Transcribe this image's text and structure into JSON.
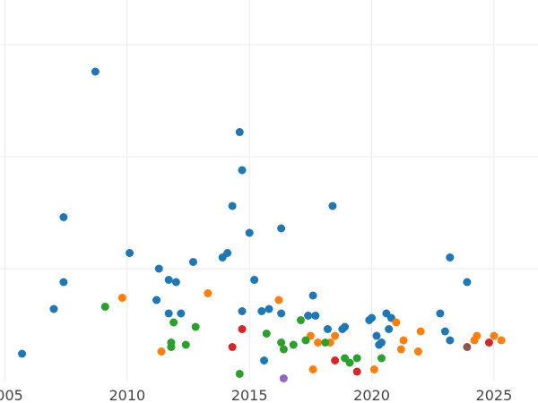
{
  "chart_data": {
    "type": "scatter",
    "title": "",
    "xlabel": "",
    "ylabel": "",
    "xlim": [
      2004.8,
      2026.8
    ],
    "ylim": [
      0,
      17
    ],
    "x_ticks": [
      2005,
      2010,
      2015,
      2020,
      2025
    ],
    "x_tick_labels": [
      "2005",
      "2010",
      "2015",
      "2020",
      "2025"
    ],
    "y_gridlines": [
      5,
      10,
      15
    ],
    "grid": true,
    "legend": "none",
    "series": [
      {
        "color": "#1f77b4",
        "points": [
          [
            2005.7,
            1.2
          ],
          [
            2007.0,
            3.2
          ],
          [
            2007.4,
            4.4
          ],
          [
            2007.4,
            7.3
          ],
          [
            2008.7,
            13.8
          ],
          [
            2010.1,
            5.7
          ],
          [
            2011.2,
            3.6
          ],
          [
            2011.3,
            5.0
          ],
          [
            2011.7,
            4.5
          ],
          [
            2011.7,
            3.0
          ],
          [
            2012.0,
            4.4
          ],
          [
            2012.2,
            3.0
          ],
          [
            2012.7,
            5.3
          ],
          [
            2013.9,
            5.5
          ],
          [
            2014.1,
            5.7
          ],
          [
            2014.3,
            7.8
          ],
          [
            2014.6,
            11.1
          ],
          [
            2014.7,
            3.1
          ],
          [
            2014.7,
            9.4
          ],
          [
            2015.0,
            6.6
          ],
          [
            2015.2,
            4.5
          ],
          [
            2015.5,
            3.1
          ],
          [
            2015.6,
            0.9
          ],
          [
            2015.8,
            3.2
          ],
          [
            2016.3,
            3.0
          ],
          [
            2016.3,
            6.8
          ],
          [
            2017.4,
            2.9
          ],
          [
            2017.6,
            3.8
          ],
          [
            2017.7,
            2.9
          ],
          [
            2018.2,
            2.3
          ],
          [
            2018.4,
            7.8
          ],
          [
            2018.8,
            2.3
          ],
          [
            2018.9,
            2.4
          ],
          [
            2019.9,
            2.7
          ],
          [
            2020.0,
            2.8
          ],
          [
            2020.2,
            2.0
          ],
          [
            2020.3,
            1.6
          ],
          [
            2020.4,
            1.7
          ],
          [
            2020.6,
            3.0
          ],
          [
            2020.7,
            2.3
          ],
          [
            2020.8,
            2.8
          ],
          [
            2022.8,
            3.0
          ],
          [
            2023.0,
            2.2
          ],
          [
            2023.2,
            1.8
          ],
          [
            2023.2,
            5.5
          ],
          [
            2023.9,
            4.4
          ]
        ]
      },
      {
        "color": "#ff7f0e",
        "points": [
          [
            2009.8,
            3.7
          ],
          [
            2011.4,
            1.3
          ],
          [
            2013.3,
            3.9
          ],
          [
            2016.2,
            3.6
          ],
          [
            2017.5,
            2.0
          ],
          [
            2017.6,
            0.5
          ],
          [
            2017.8,
            1.7
          ],
          [
            2018.3,
            1.7
          ],
          [
            2018.5,
            2.0
          ],
          [
            2020.1,
            0.5
          ],
          [
            2021.0,
            2.6
          ],
          [
            2021.2,
            1.4
          ],
          [
            2021.3,
            1.8
          ],
          [
            2021.9,
            1.3
          ],
          [
            2022.0,
            2.2
          ],
          [
            2024.2,
            1.8
          ],
          [
            2024.3,
            2.0
          ],
          [
            2025.0,
            2.0
          ],
          [
            2025.3,
            1.8
          ]
        ]
      },
      {
        "color": "#2ca02c",
        "points": [
          [
            2009.1,
            3.3
          ],
          [
            2011.8,
            1.7
          ],
          [
            2011.8,
            1.5
          ],
          [
            2011.9,
            2.6
          ],
          [
            2012.4,
            1.6
          ],
          [
            2012.8,
            2.4
          ],
          [
            2014.6,
            0.3
          ],
          [
            2015.7,
            2.1
          ],
          [
            2016.3,
            1.7
          ],
          [
            2016.4,
            1.4
          ],
          [
            2016.8,
            1.6
          ],
          [
            2017.1,
            2.7
          ],
          [
            2017.3,
            1.8
          ],
          [
            2018.1,
            1.7
          ],
          [
            2018.9,
            1.0
          ],
          [
            2019.1,
            0.8
          ],
          [
            2019.4,
            1.0
          ],
          [
            2020.4,
            1.0
          ]
        ]
      },
      {
        "color": "#d62728",
        "points": [
          [
            2014.3,
            1.5
          ],
          [
            2014.7,
            2.3
          ],
          [
            2018.5,
            0.9
          ],
          [
            2019.4,
            0.4
          ],
          [
            2024.8,
            1.7
          ]
        ]
      },
      {
        "color": "#9467bd",
        "points": [
          [
            2016.4,
            0.1
          ]
        ]
      },
      {
        "color": "#8c564b",
        "points": [
          [
            2023.9,
            1.5
          ]
        ]
      }
    ]
  }
}
